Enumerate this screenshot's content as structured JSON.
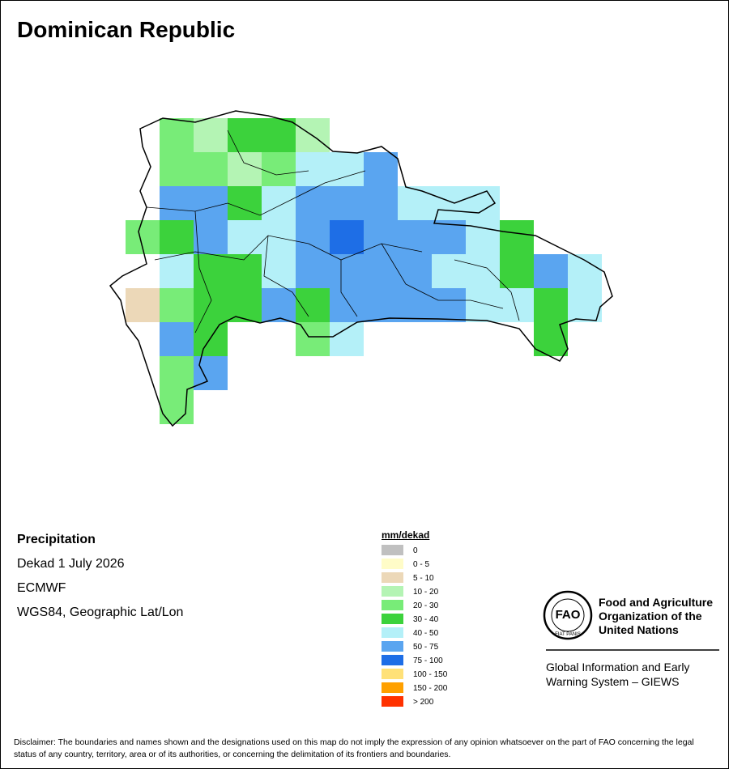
{
  "title": "Dominican Republic",
  "info": {
    "heading": "Precipitation",
    "lines": [
      "Dekad 1 July 2026",
      "ECMWF",
      "WGS84, Geographic Lat/Lon"
    ]
  },
  "legend": {
    "title": "mm/dekad",
    "items": [
      {
        "label": "0",
        "color": "#c0c0c0"
      },
      {
        "label": "0 - 5",
        "color": "#fffcc8"
      },
      {
        "label": "5 - 10",
        "color": "#ecd8b8"
      },
      {
        "label": "10 - 20",
        "color": "#b4f4b4"
      },
      {
        "label": "20 - 30",
        "color": "#78ec78"
      },
      {
        "label": "30 - 40",
        "color": "#3cd23c"
      },
      {
        "label": "40 - 50",
        "color": "#b4f0f8"
      },
      {
        "label": "50 - 75",
        "color": "#5aa5f0"
      },
      {
        "label": "75 - 100",
        "color": "#1e6ee6"
      },
      {
        "label": "100 - 150",
        "color": "#ffe178"
      },
      {
        "label": "150 - 200",
        "color": "#ffa000"
      },
      {
        "label": "> 200",
        "color": "#ff3200"
      }
    ]
  },
  "logo": {
    "letters": "FAO",
    "motto": "FIAT PANIS"
  },
  "organization": [
    "Food and Agriculture",
    "Organization of the",
    "United Nations"
  ],
  "system": [
    "Global Information and Early",
    "Warning System – GIEWS"
  ],
  "disclaimer": "Disclaimer: The boundaries and names shown and the designations used on this map do not imply the expression of any opinion whatsoever on the part of FAO concerning the legal status of any country, territory, area or of its authorities, or concerning the delimitation of its frontiers and boundaries."
}
